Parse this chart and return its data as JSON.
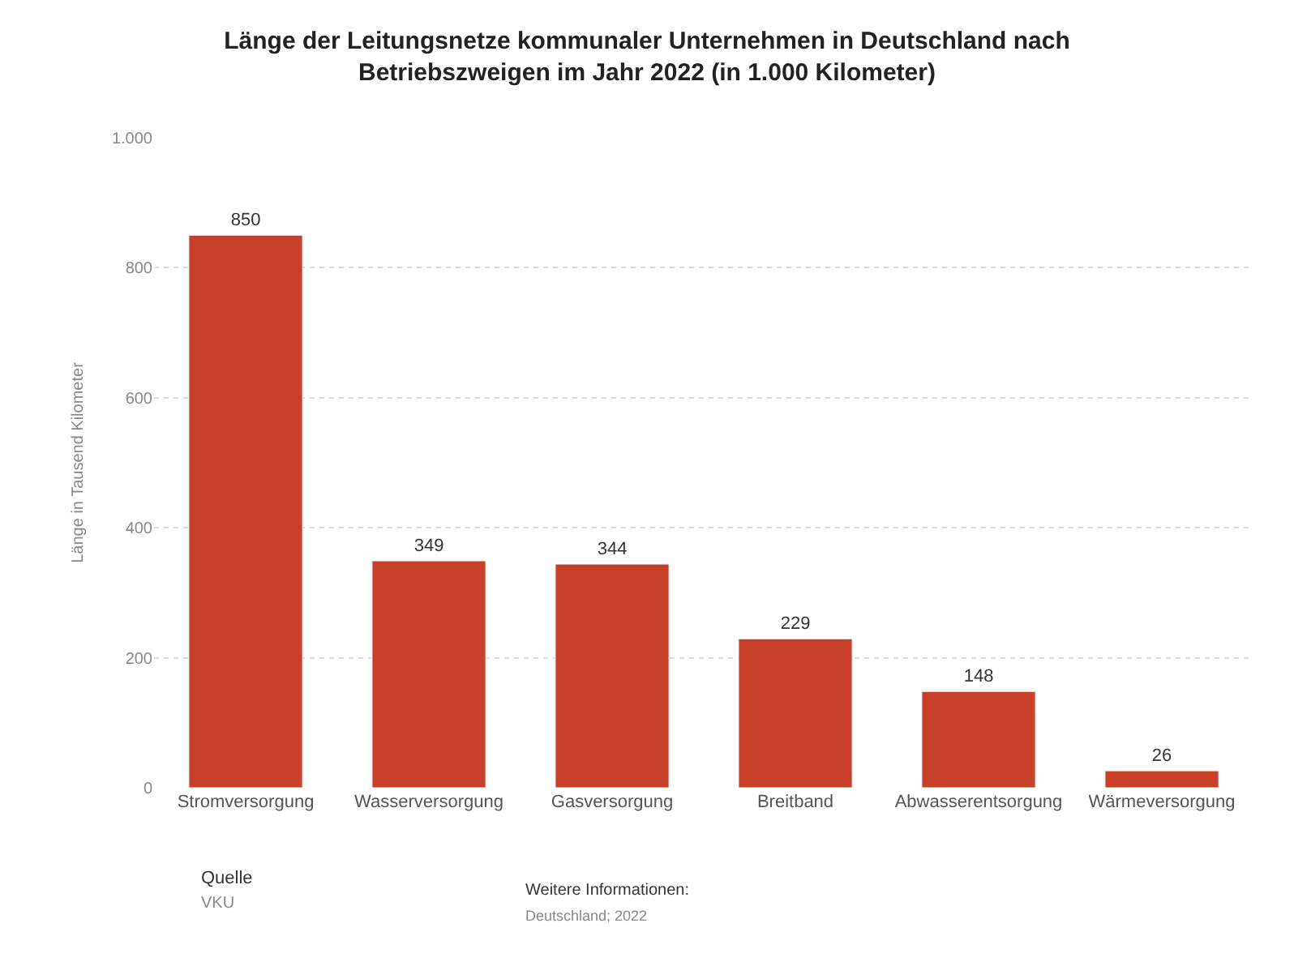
{
  "chart_data": {
    "type": "bar",
    "title": "Länge der Leitungsnetze kommunaler Unternehmen in Deutschland nach Betriebszweigen im Jahr 2022 (in 1.000 Kilometer)",
    "ylabel": "Länge in Tausend Kilometer",
    "categories": [
      "Stromversorgung",
      "Wasserversorgung",
      "Gasversorgung",
      "Breitband",
      "Abwasserentsorgung",
      "Wärmeversorgung"
    ],
    "values": [
      850,
      349,
      344,
      229,
      148,
      26
    ],
    "color": "#c8402a",
    "ylim": [
      0,
      1000
    ],
    "yticks": [
      0,
      200,
      400,
      600,
      800,
      {
        "value": 1000,
        "label": "1.000"
      }
    ],
    "grid": "y",
    "data_labels": true,
    "annotations": [
      "Quelle",
      "VKU",
      "Weitere Informationen:",
      "Deutschland; 2022"
    ]
  }
}
